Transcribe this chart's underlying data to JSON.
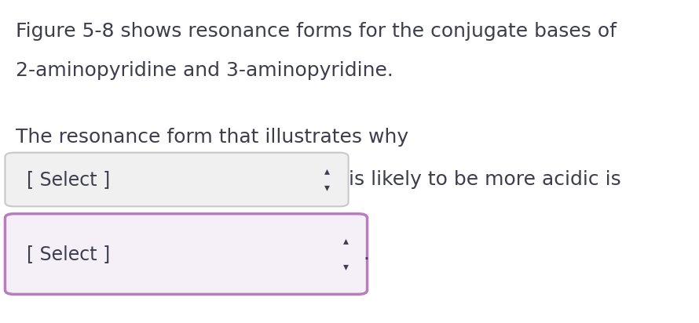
{
  "background_color": "#ffffff",
  "text_color": "#3d3d4e",
  "line1": "Figure 5-8 shows resonance forms for the conjugate bases of",
  "line2": "2-aminopyridine and 3-aminopyridine.",
  "line3": "The resonance form that illustrates why",
  "select_label": "[ Select ]",
  "inline_text": "is likely to be more acidic is",
  "period": ".",
  "dropdown1_border_color": "#c8c8c8",
  "dropdown1_fill_color": "#f0f0f0",
  "dropdown2_border_color": "#b87cbf",
  "dropdown2_fill_color": "#f5f0f7",
  "font_size_text": 18,
  "font_size_select": 17,
  "font_size_arrow": 10,
  "arrow_color": "#3d3d4e"
}
